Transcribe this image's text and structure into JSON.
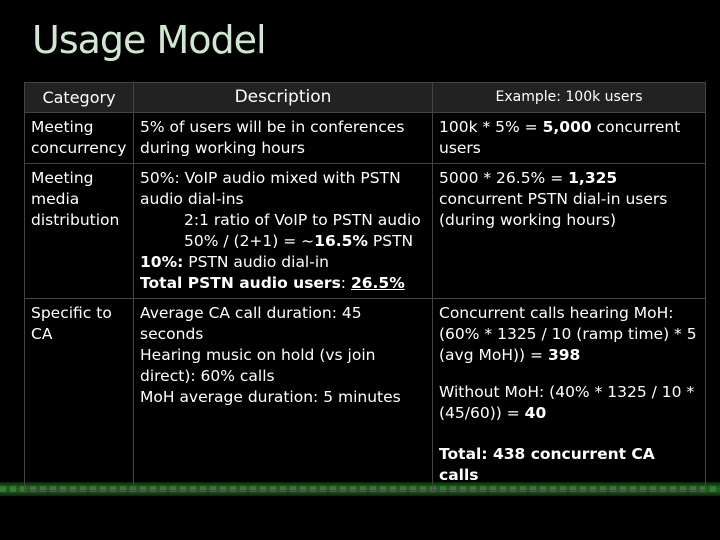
{
  "title": "Usage Model",
  "headers": {
    "category": "Category",
    "description": "Description",
    "example": "Example: 100k users"
  },
  "rows": [
    {
      "category": "Meeting concurrency",
      "description": [
        "5% of users will be in conferences during working hours"
      ],
      "example": {
        "pre": "100k * 5% = ",
        "bold": "5,000",
        "post": " concurrent users"
      }
    },
    {
      "category": "Meeting media distribution",
      "description": {
        "line1": "50%: VoIP audio mixed with PSTN audio dial-ins",
        "line2": "2:1 ratio of VoIP to PSTN audio",
        "line3_pre": "50% / (2+1) = ~",
        "line3_bold": "16.5%",
        "line3_post": " PSTN",
        "line4_bold": "10%:",
        "line4_post": " PSTN audio dial-in",
        "line5_bold": "Total PSTN audio users",
        "line5_post": ": ",
        "line5_value": "26.5%"
      },
      "example": {
        "pre": "5000 * 26.5% = ",
        "bold": "1,325",
        "post": " concurrent PSTN dial-in users (during working hours)"
      }
    },
    {
      "category": "Specific to CA",
      "description": {
        "line1": "Average CA call duration: 45 seconds",
        "line2": "Hearing music on hold (vs join direct): 60% calls",
        "line3": "MoH average duration: 5 minutes"
      },
      "example": {
        "a_pre": "Concurrent calls hearing MoH: (60% * 1325 / 10 (ramp time) * 5 (avg MoH)) = ",
        "a_bold": "398",
        "b_pre": "Without MoH: (40% * 1325 / 10 * (45/60)) = ",
        "b_bold": "40",
        "total": "Total: 438 concurrent CA calls"
      }
    }
  ],
  "colors": {
    "title": "#cfe8cf",
    "background": "#000000",
    "accent_stripe": "#2f7a2f"
  }
}
